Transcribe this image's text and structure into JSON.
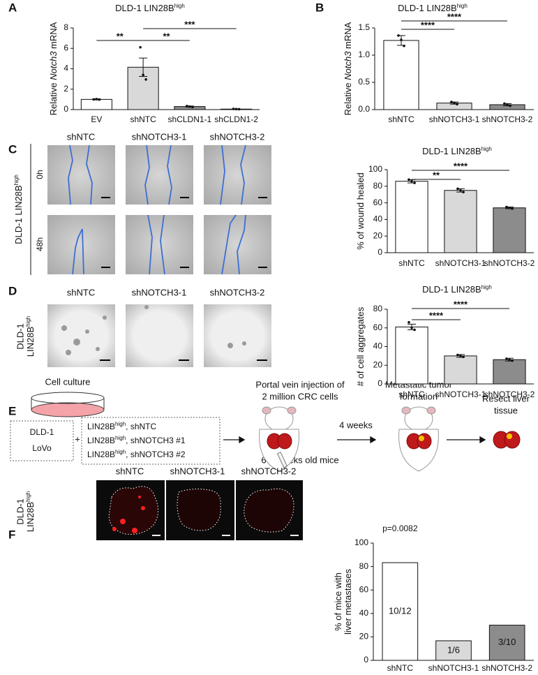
{
  "chart_data": [
    {
      "type": "bar",
      "title": {
        "text": "DLD-1 LIN28B",
        "sup": "high"
      },
      "ylabel": [
        [
          {
            "text": "Relative "
          },
          {
            "text": "Notch3",
            "italic": true
          },
          {
            "text": " mRNA"
          }
        ]
      ],
      "categories": [
        "EV",
        "shNTC",
        "shCLDN1-1",
        "shCLDN1-2"
      ],
      "values": [
        1.0,
        4.15,
        0.3,
        0.05
      ],
      "errors": [
        0.05,
        0.9,
        0.05,
        0.02
      ],
      "points": [
        [
          1.0,
          1.03,
          0.98
        ],
        [
          6.1,
          3.4,
          2.95
        ],
        [
          0.35,
          0.3,
          0.25
        ],
        [
          0.07,
          0.05,
          0.04
        ]
      ],
      "colors": [
        "#ffffff",
        "#d9d9d9",
        "#8c8c8c",
        "#8c8c8c"
      ],
      "ylim": [
        0,
        8
      ],
      "yticks": [
        0,
        2,
        4,
        6,
        8
      ],
      "significance": [
        {
          "between": [
            "EV",
            "shNTC"
          ],
          "label": "**"
        },
        {
          "between": [
            "shNTC",
            "shCLDN1-1"
          ],
          "label": "**"
        },
        {
          "between": [
            "shNTC",
            "shCLDN1-2"
          ],
          "label": "***"
        }
      ]
    },
    {
      "type": "bar",
      "title": {
        "text": "DLD-1 LIN28B",
        "sup": "high"
      },
      "ylabel": [
        [
          {
            "text": "Relative "
          },
          {
            "text": "Notch3",
            "italic": true
          },
          {
            "text": " mRNA"
          }
        ]
      ],
      "categories": [
        "shNTC",
        "shNOTCH3-1",
        "shNOTCH3-2"
      ],
      "values": [
        1.27,
        0.12,
        0.09
      ],
      "errors": [
        0.09,
        0.02,
        0.02
      ],
      "points": [
        [
          1.36,
          1.28,
          1.17
        ],
        [
          0.14,
          0.12,
          0.1
        ],
        [
          0.11,
          0.09,
          0.07
        ]
      ],
      "colors": [
        "#ffffff",
        "#d9d9d9",
        "#8c8c8c"
      ],
      "ylim": [
        0,
        1.5
      ],
      "yticks": [
        {
          "value": 0,
          "label": "0.0"
        },
        0.5,
        {
          "value": 1,
          "label": "1.0"
        },
        1.5
      ],
      "significance": [
        {
          "between": [
            "shNTC",
            "shNOTCH3-1"
          ],
          "label": "****"
        },
        {
          "between": [
            "shNTC",
            "shNOTCH3-2"
          ],
          "label": "****"
        }
      ]
    },
    {
      "type": "bar",
      "title": {
        "text": "DLD-1 LIN28B",
        "sup": "high"
      },
      "ylabel": [
        [
          {
            "text": "% of wound healed"
          }
        ]
      ],
      "categories": [
        "shNTC",
        "shNOTCH3-1",
        "shNOTCH3-2"
      ],
      "values": [
        86,
        75,
        54
      ],
      "errors": [
        2,
        2,
        1
      ],
      "points": [
        [
          88,
          86,
          84
        ],
        [
          77,
          75,
          73
        ],
        [
          55,
          54,
          53
        ]
      ],
      "colors": [
        "#ffffff",
        "#d9d9d9",
        "#8c8c8c"
      ],
      "ylim": [
        0,
        100
      ],
      "yticks": [
        0,
        20,
        40,
        60,
        80,
        100
      ],
      "significance": [
        {
          "between": [
            "shNTC",
            "shNOTCH3-1"
          ],
          "label": "**"
        },
        {
          "between": [
            "shNTC",
            "shNOTCH3-2"
          ],
          "label": "****"
        }
      ]
    },
    {
      "type": "bar",
      "title": {
        "text": "DLD-1 LIN28B",
        "sup": "high"
      },
      "ylabel": [
        [
          {
            "text": "# of cell aggregates"
          }
        ]
      ],
      "categories": [
        "shNTC",
        "shNOTCH3-1",
        "shNOTCH3-2"
      ],
      "values": [
        61,
        30,
        26
      ],
      "errors": [
        3,
        1.5,
        1.5
      ],
      "points": [
        [
          66,
          60,
          58
        ],
        [
          31,
          30,
          29
        ],
        [
          27,
          26,
          25
        ]
      ],
      "colors": [
        "#ffffff",
        "#d9d9d9",
        "#8c8c8c"
      ],
      "ylim": [
        0,
        80
      ],
      "yticks": [
        0,
        20,
        40,
        60,
        80
      ],
      "significance": [
        {
          "between": [
            "shNTC",
            "shNOTCH3-1"
          ],
          "label": "****"
        },
        {
          "between": [
            "shNTC",
            "shNOTCH3-2"
          ],
          "label": "****"
        }
      ]
    },
    {
      "type": "bar",
      "ylabel": [
        [
          {
            "text": "% of mice with"
          }
        ],
        [
          {
            "text": "liver metastases"
          }
        ]
      ],
      "categories": [
        "shNTC",
        "shNOTCH3-1",
        "shNOTCH3-2"
      ],
      "values": [
        83.3,
        16.7,
        30
      ],
      "value_labels": [
        "10/12",
        "1/6",
        "3/10"
      ],
      "colors": [
        "#ffffff",
        "#d9d9d9",
        "#8c8c8c"
      ],
      "ylim": [
        0,
        100
      ],
      "yticks": [
        0,
        20,
        40,
        60,
        80,
        100
      ],
      "annotation": "p=0.0082"
    }
  ],
  "figure": {
    "panel_letters": [
      "A",
      "B",
      "C",
      "D",
      "E",
      "F"
    ],
    "panel_c": {
      "columns": [
        "shNTC",
        "shNOTCH3-1",
        "shNOTCH3-2"
      ],
      "rows": [
        "0h",
        "48h"
      ],
      "row_label": {
        "text": "DLD-1 LIN28B",
        "sup": "high"
      }
    },
    "panel_d": {
      "columns": [
        "shNTC",
        "shNOTCH3-1",
        "shNOTCH3-2"
      ],
      "row_label": {
        "line1": "DLD-1",
        "text": "LIN28B",
        "sup": "high"
      }
    },
    "panel_e": {
      "dish_label": "Cell culture",
      "cell_lines": [
        "DLD-1",
        "LoVo"
      ],
      "plus": "+",
      "conditions": [
        {
          "text": "LIN28B",
          "sup": "high",
          "rest": ", shNTC"
        },
        {
          "text": "LIN28B",
          "sup": "high",
          "rest": ", shNOTCH3 #1"
        },
        {
          "text": "LIN28B",
          "sup": "high",
          "rest": ", shNOTCH3 #2"
        }
      ],
      "injection": [
        "Portal vein injection of",
        "2 million CRC cells"
      ],
      "mice": "6-8 weeks old mice",
      "interval": "4 weeks",
      "tumor": [
        "Metastatic tumor",
        "formation"
      ],
      "resect": [
        "Resect liver",
        "tissue"
      ]
    },
    "panel_f": {
      "columns": [
        "shNTC",
        "shNOTCH3-1",
        "shNOTCH3-2"
      ],
      "row_label": {
        "line1": "DLD-1",
        "text": "LIN28B",
        "sup": "high"
      }
    }
  }
}
